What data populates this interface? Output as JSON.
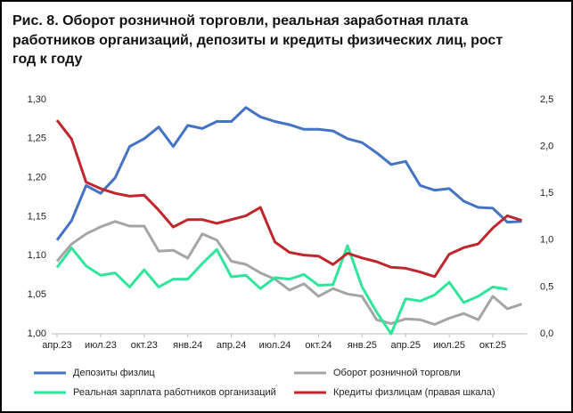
{
  "chart_data": {
    "type": "line",
    "title_lines": [
      "Рис. 8. Оборот розничной торговли, реальная заработная плата",
      "работников организаций, депозиты и кредиты физических лиц, рост",
      "год к году"
    ],
    "categories": [
      "апр.23",
      null,
      null,
      "июл.23",
      null,
      null,
      "окт.23",
      null,
      null,
      "янв.24",
      null,
      null,
      "апр.24",
      null,
      null,
      "июл.24",
      null,
      null,
      "окт.24",
      null,
      null,
      "янв.25",
      null,
      null,
      "апр.25",
      null,
      null,
      "июл.25",
      null,
      null,
      "окт.25",
      null,
      null
    ],
    "series": [
      {
        "name": "Депозиты физлиц",
        "color": "#4472c4",
        "values": [
          1.12,
          1.145,
          1.19,
          1.18,
          1.2,
          1.24,
          1.25,
          1.265,
          1.24,
          1.267,
          1.263,
          1.272,
          1.272,
          1.29,
          1.278,
          1.272,
          1.268,
          1.262,
          1.262,
          1.26,
          1.25,
          1.245,
          1.232,
          1.217,
          1.221,
          1.19,
          1.184,
          1.186,
          1.17,
          1.162,
          1.161,
          1.143,
          1.144
        ]
      },
      {
        "name": "Оборот розничной торговли",
        "color": "#a5a5a5",
        "values": [
          1.093,
          1.115,
          1.128,
          1.137,
          1.144,
          1.138,
          1.138,
          1.106,
          1.107,
          1.097,
          1.128,
          1.12,
          1.093,
          1.089,
          1.078,
          1.07,
          1.056,
          1.064,
          1.048,
          1.058,
          1.051,
          1.048,
          1.018,
          1.013,
          1.019,
          1.018,
          1.012,
          1.02,
          1.026,
          1.018,
          1.048,
          1.032,
          1.038
        ]
      },
      {
        "name": "Реальная зарплата работников организаций",
        "color": "#2ee59a",
        "values": [
          1.085,
          1.11,
          1.087,
          1.075,
          1.078,
          1.06,
          1.082,
          1.06,
          1.07,
          1.07,
          1.09,
          1.108,
          1.073,
          1.075,
          1.058,
          1.072,
          1.07,
          1.076,
          1.062,
          1.063,
          1.113,
          1.06,
          1.028,
          1.0,
          1.045,
          1.042,
          1.05,
          1.066,
          1.04,
          1.048,
          1.06,
          1.057,
          null
        ]
      },
      {
        "name": "Кредиты физлицам (правая шкала)",
        "color": "#c0272d",
        "axis": "y2",
        "values": [
          2.28,
          2.08,
          1.62,
          1.55,
          1.5,
          1.47,
          1.48,
          1.32,
          1.14,
          1.22,
          1.22,
          1.18,
          1.22,
          1.26,
          1.35,
          0.98,
          0.87,
          0.84,
          0.83,
          0.74,
          0.86,
          0.81,
          0.77,
          0.71,
          0.7,
          0.66,
          0.61,
          0.85,
          0.92,
          0.96,
          1.13,
          1.26,
          1.21
        ]
      }
    ],
    "ylim": [
      1.0,
      1.3
    ],
    "yticks": [
      {
        "value": 1.0,
        "label": "1,00"
      },
      {
        "value": 1.05,
        "label": "1,05"
      },
      {
        "value": 1.1,
        "label": "1,10"
      },
      {
        "value": 1.15,
        "label": "1,15"
      },
      {
        "value": 1.2,
        "label": "1,20"
      },
      {
        "value": 1.25,
        "label": "1,25"
      },
      {
        "value": 1.3,
        "label": "1,30"
      }
    ],
    "y2lim": [
      0,
      2.5
    ],
    "y2ticks": [
      {
        "value": 0,
        "label": "0,0"
      },
      {
        "value": 0.5,
        "label": "0,5"
      },
      {
        "value": 1.0,
        "label": "1,0"
      },
      {
        "value": 1.5,
        "label": "1,5"
      },
      {
        "value": 2.0,
        "label": "2,0"
      },
      {
        "value": 2.5,
        "label": "2,5"
      }
    ],
    "grid": false
  }
}
